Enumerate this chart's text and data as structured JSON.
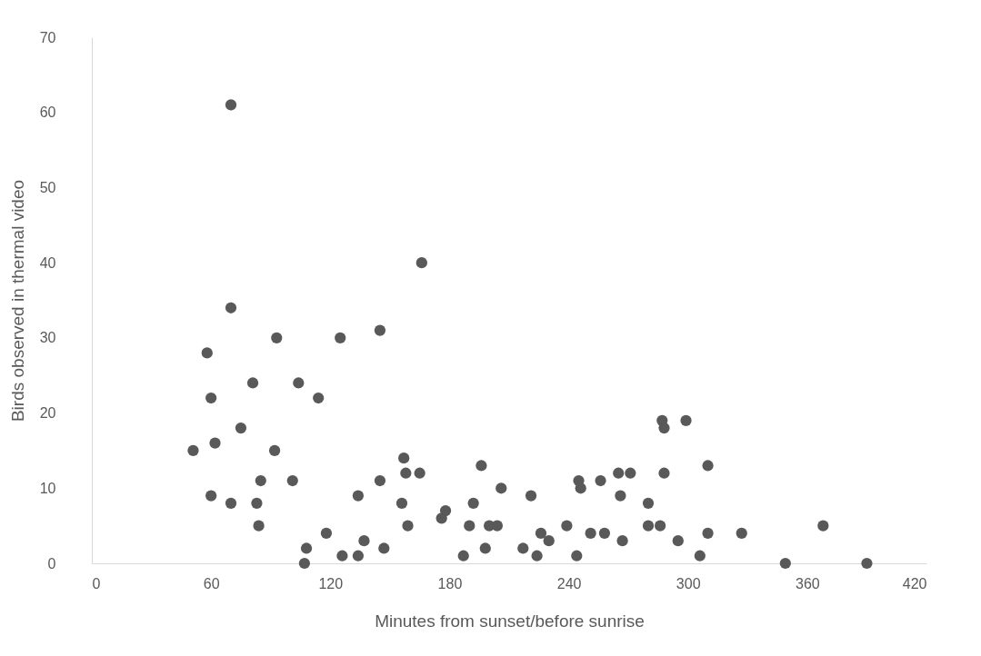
{
  "chart_data": {
    "type": "scatter",
    "xlabel": "Minutes from sunset/before sunrise",
    "ylabel": "Birds observed in thermal video",
    "x": [
      51,
      58,
      60,
      60,
      62,
      70,
      70,
      70,
      75,
      81,
      83,
      84,
      85,
      92,
      93,
      101,
      104,
      107,
      108,
      114,
      118,
      125,
      126,
      134,
      134,
      137,
      145,
      145,
      147,
      156,
      157,
      158,
      159,
      165,
      166,
      176,
      178,
      187,
      190,
      192,
      196,
      198,
      200,
      204,
      206,
      217,
      221,
      224,
      226,
      230,
      239,
      244,
      245,
      246,
      251,
      256,
      258,
      265,
      266,
      267,
      271,
      280,
      280,
      286,
      287,
      288,
      288,
      295,
      299,
      306,
      310,
      310,
      327,
      349,
      368,
      390
    ],
    "series": [
      {
        "color": "#595959",
        "values": [
          15,
          28,
          22,
          9,
          16,
          61,
          34,
          8,
          18,
          24,
          8,
          5,
          11,
          15,
          30,
          11,
          24,
          0,
          2,
          22,
          4,
          30,
          1,
          1,
          9,
          3,
          31,
          11,
          2,
          8,
          14,
          12,
          5,
          12,
          40,
          6,
          7,
          1,
          5,
          8,
          13,
          2,
          5,
          5,
          10,
          2,
          9,
          1,
          4,
          3,
          5,
          1,
          11,
          10,
          4,
          11,
          4,
          12,
          9,
          3,
          12,
          8,
          5,
          5,
          19,
          18,
          12,
          3,
          19,
          1,
          13,
          4,
          4,
          0,
          5,
          0
        ]
      }
    ],
    "xlim": [
      0,
      420
    ],
    "xticks": [
      0,
      60,
      120,
      180,
      240,
      300,
      360,
      420
    ],
    "ylim": [
      0,
      70
    ],
    "yticks": [
      0,
      10,
      20,
      30,
      40,
      50,
      60,
      70
    ],
    "grid": false,
    "legend": false,
    "marker": "circle"
  }
}
